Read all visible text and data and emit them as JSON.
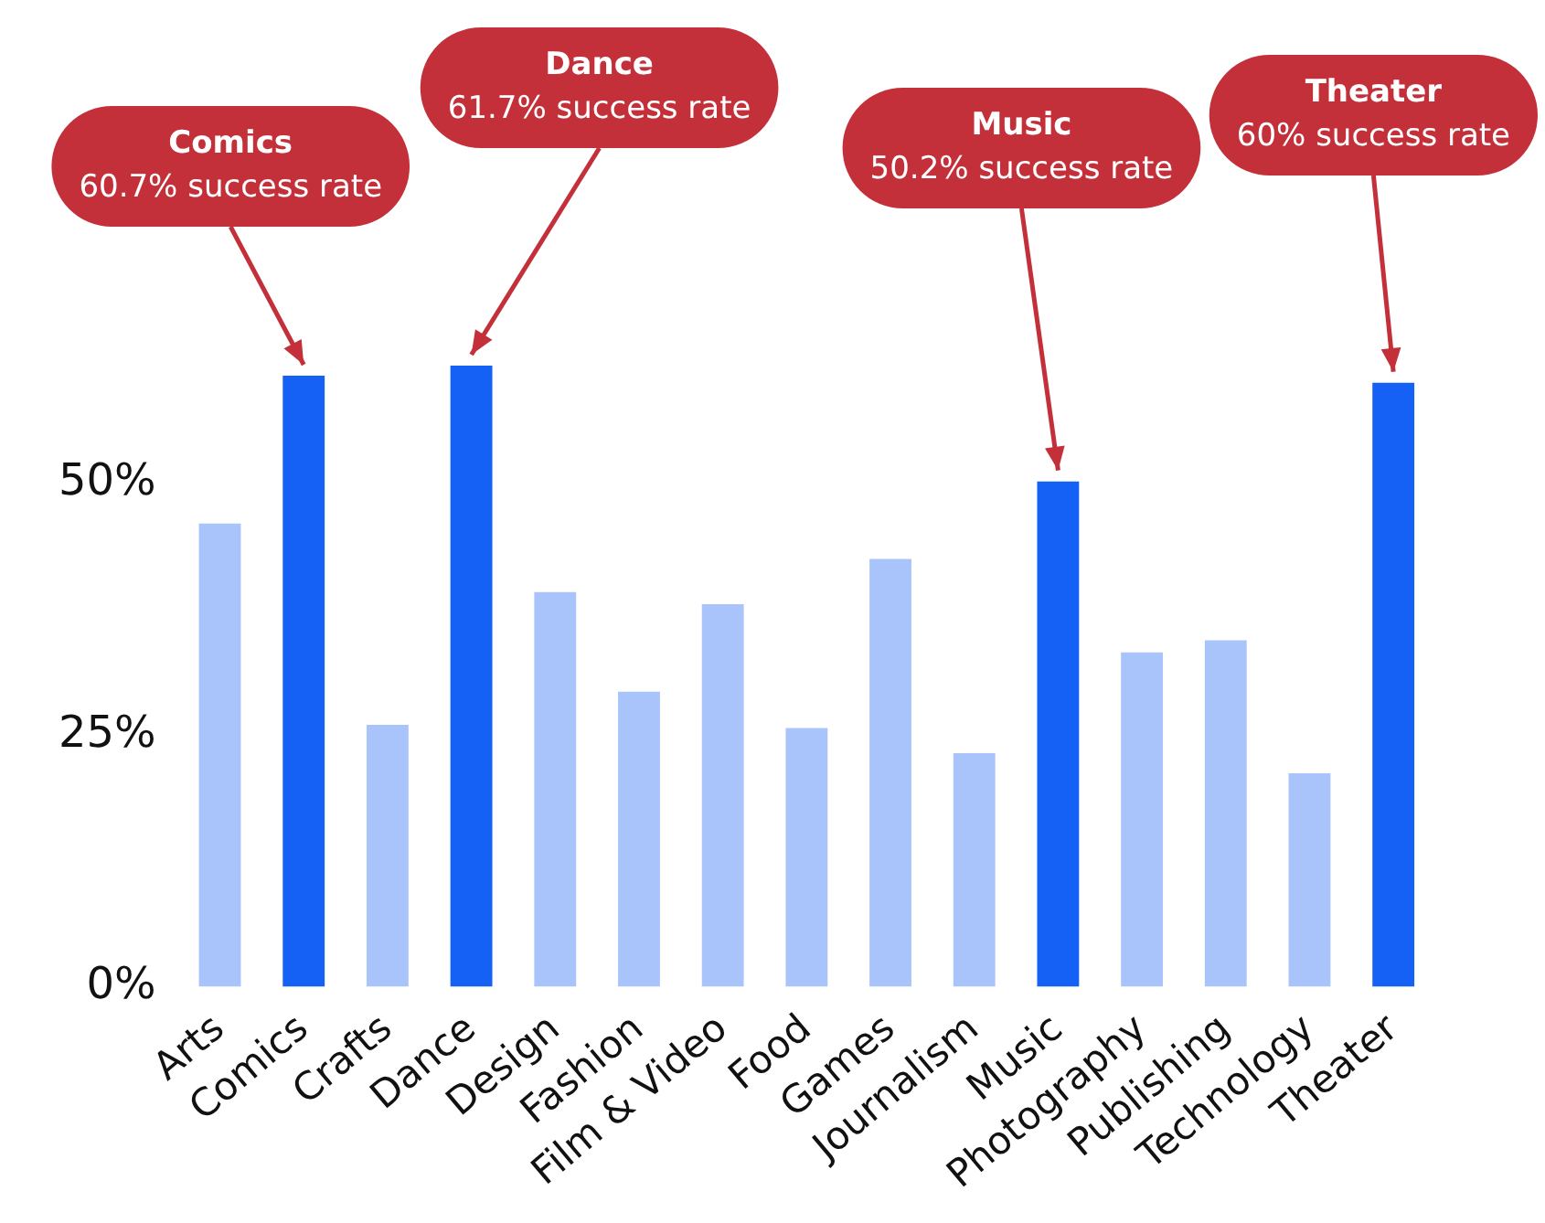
{
  "chart_data": {
    "type": "bar",
    "categories": [
      "Arts",
      "Comics",
      "Crafts",
      "Dance",
      "Design",
      "Fashion",
      "Film & Video",
      "Food",
      "Games",
      "Journalism",
      "Music",
      "Photography",
      "Publishing",
      "Technology",
      "Theater"
    ],
    "values": [
      46,
      60.7,
      26,
      61.7,
      39.2,
      29.3,
      38,
      25.7,
      42.5,
      23.2,
      50.2,
      33.2,
      34.4,
      21.2,
      60
    ],
    "colors": [
      "#a9c4fa",
      "#1560f5",
      "#a9c4fa",
      "#1560f5",
      "#a9c4fa",
      "#a9c4fa",
      "#a9c4fa",
      "#a9c4fa",
      "#a9c4fa",
      "#a9c4fa",
      "#1560f5",
      "#a9c4fa",
      "#a9c4fa",
      "#a9c4fa",
      "#1560f5"
    ],
    "ylim": [
      0,
      61.7
    ],
    "yticks": [
      {
        "value": 0,
        "label": "0%"
      },
      {
        "value": 25,
        "label": "25%"
      },
      {
        "value": 50,
        "label": "50%"
      }
    ],
    "grid": false,
    "legend": false,
    "annotations": [
      {
        "text": "Comics\n60.7% success rate",
        "x": "Comics",
        "y": 60.7
      },
      {
        "text": "Dance\n61.7% success rate",
        "x": "Dance",
        "y": 61.7
      },
      {
        "text": "Music\n50.2% success rate",
        "x": "Music",
        "y": 50.2
      },
      {
        "text": "Theater\n60% success rate",
        "x": "Theater",
        "y": 60
      }
    ]
  }
}
